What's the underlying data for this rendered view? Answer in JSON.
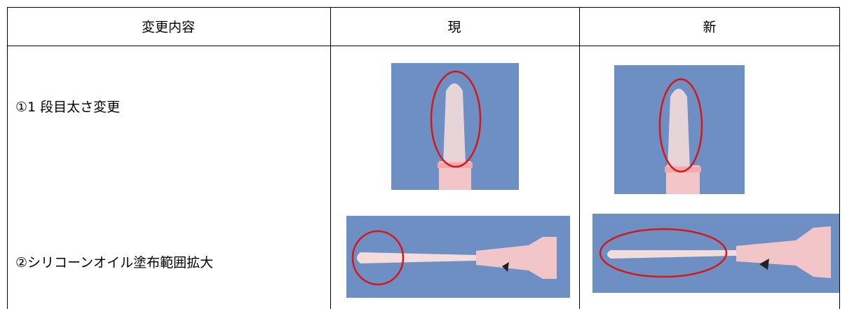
{
  "table": {
    "header": [
      "変更内容",
      "現",
      "新"
    ],
    "rows": [
      [
        "①1 段目太さ変更"
      ],
      [
        "②シリコーンオイル塗布範囲拡大"
      ]
    ]
  }
}
